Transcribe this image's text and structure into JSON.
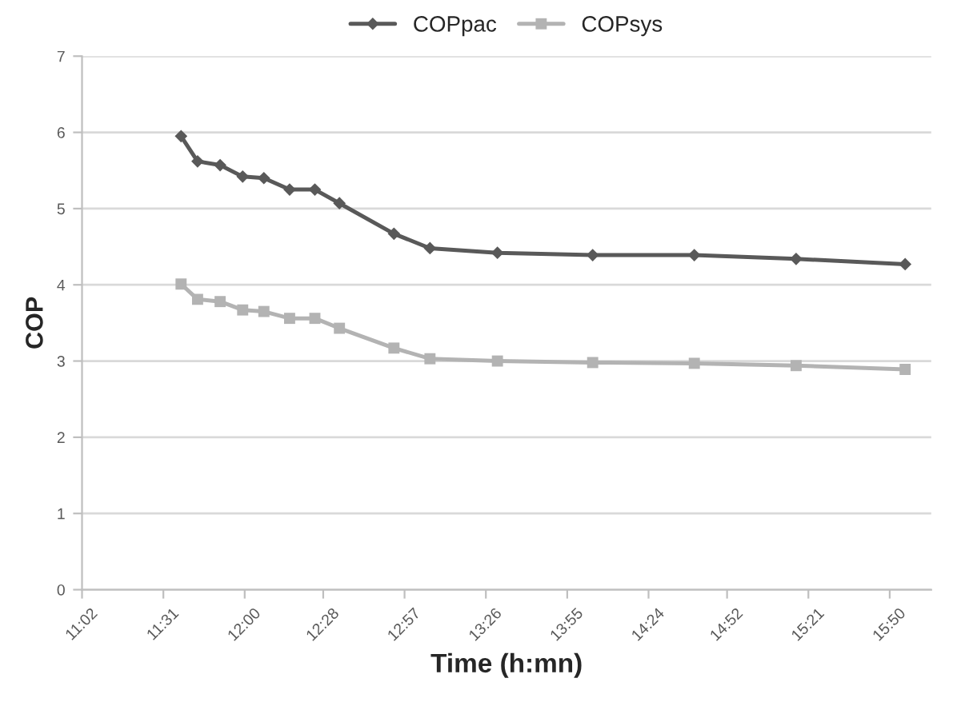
{
  "chart_data": {
    "type": "line",
    "xlabel": "Time (h:mn)",
    "ylabel": "COP",
    "x": [
      11.622,
      11.72,
      11.854,
      11.988,
      12.114,
      12.267,
      12.417,
      12.563,
      12.887,
      13.101,
      13.502,
      14.068,
      14.672,
      15.277,
      15.925
    ],
    "series": [
      {
        "name": "COPpac",
        "color": "#595959",
        "marker": "diamond",
        "values": [
          5.95,
          5.62,
          5.57,
          5.42,
          5.4,
          5.25,
          5.25,
          5.07,
          4.67,
          4.48,
          4.42,
          4.39,
          4.39,
          4.34,
          4.27
        ]
      },
      {
        "name": "COPsys",
        "color": "#b3b3b3",
        "marker": "square",
        "values": [
          4.01,
          3.81,
          3.78,
          3.67,
          3.65,
          3.56,
          3.56,
          3.43,
          3.17,
          3.03,
          3.0,
          2.98,
          2.97,
          2.94,
          2.89
        ]
      }
    ],
    "xlim": [
      11.0333,
      16.08
    ],
    "xticks": [
      {
        "value": 11.0333,
        "label": "11:02"
      },
      {
        "value": 11.5167,
        "label": "11:31"
      },
      {
        "value": 12.0,
        "label": "12:00"
      },
      {
        "value": 12.4667,
        "label": "12:28"
      },
      {
        "value": 12.95,
        "label": "12:57"
      },
      {
        "value": 13.4333,
        "label": "13:26"
      },
      {
        "value": 13.9167,
        "label": "13:55"
      },
      {
        "value": 14.4,
        "label": "14:24"
      },
      {
        "value": 14.8667,
        "label": "14:52"
      },
      {
        "value": 15.35,
        "label": "15:21"
      },
      {
        "value": 15.8333,
        "label": "15:50"
      }
    ],
    "ylim": [
      0,
      7
    ],
    "yticks": [
      0,
      1,
      2,
      3,
      4,
      5,
      6,
      7
    ],
    "grid": "y",
    "legend": "top",
    "line_style": "solid"
  }
}
